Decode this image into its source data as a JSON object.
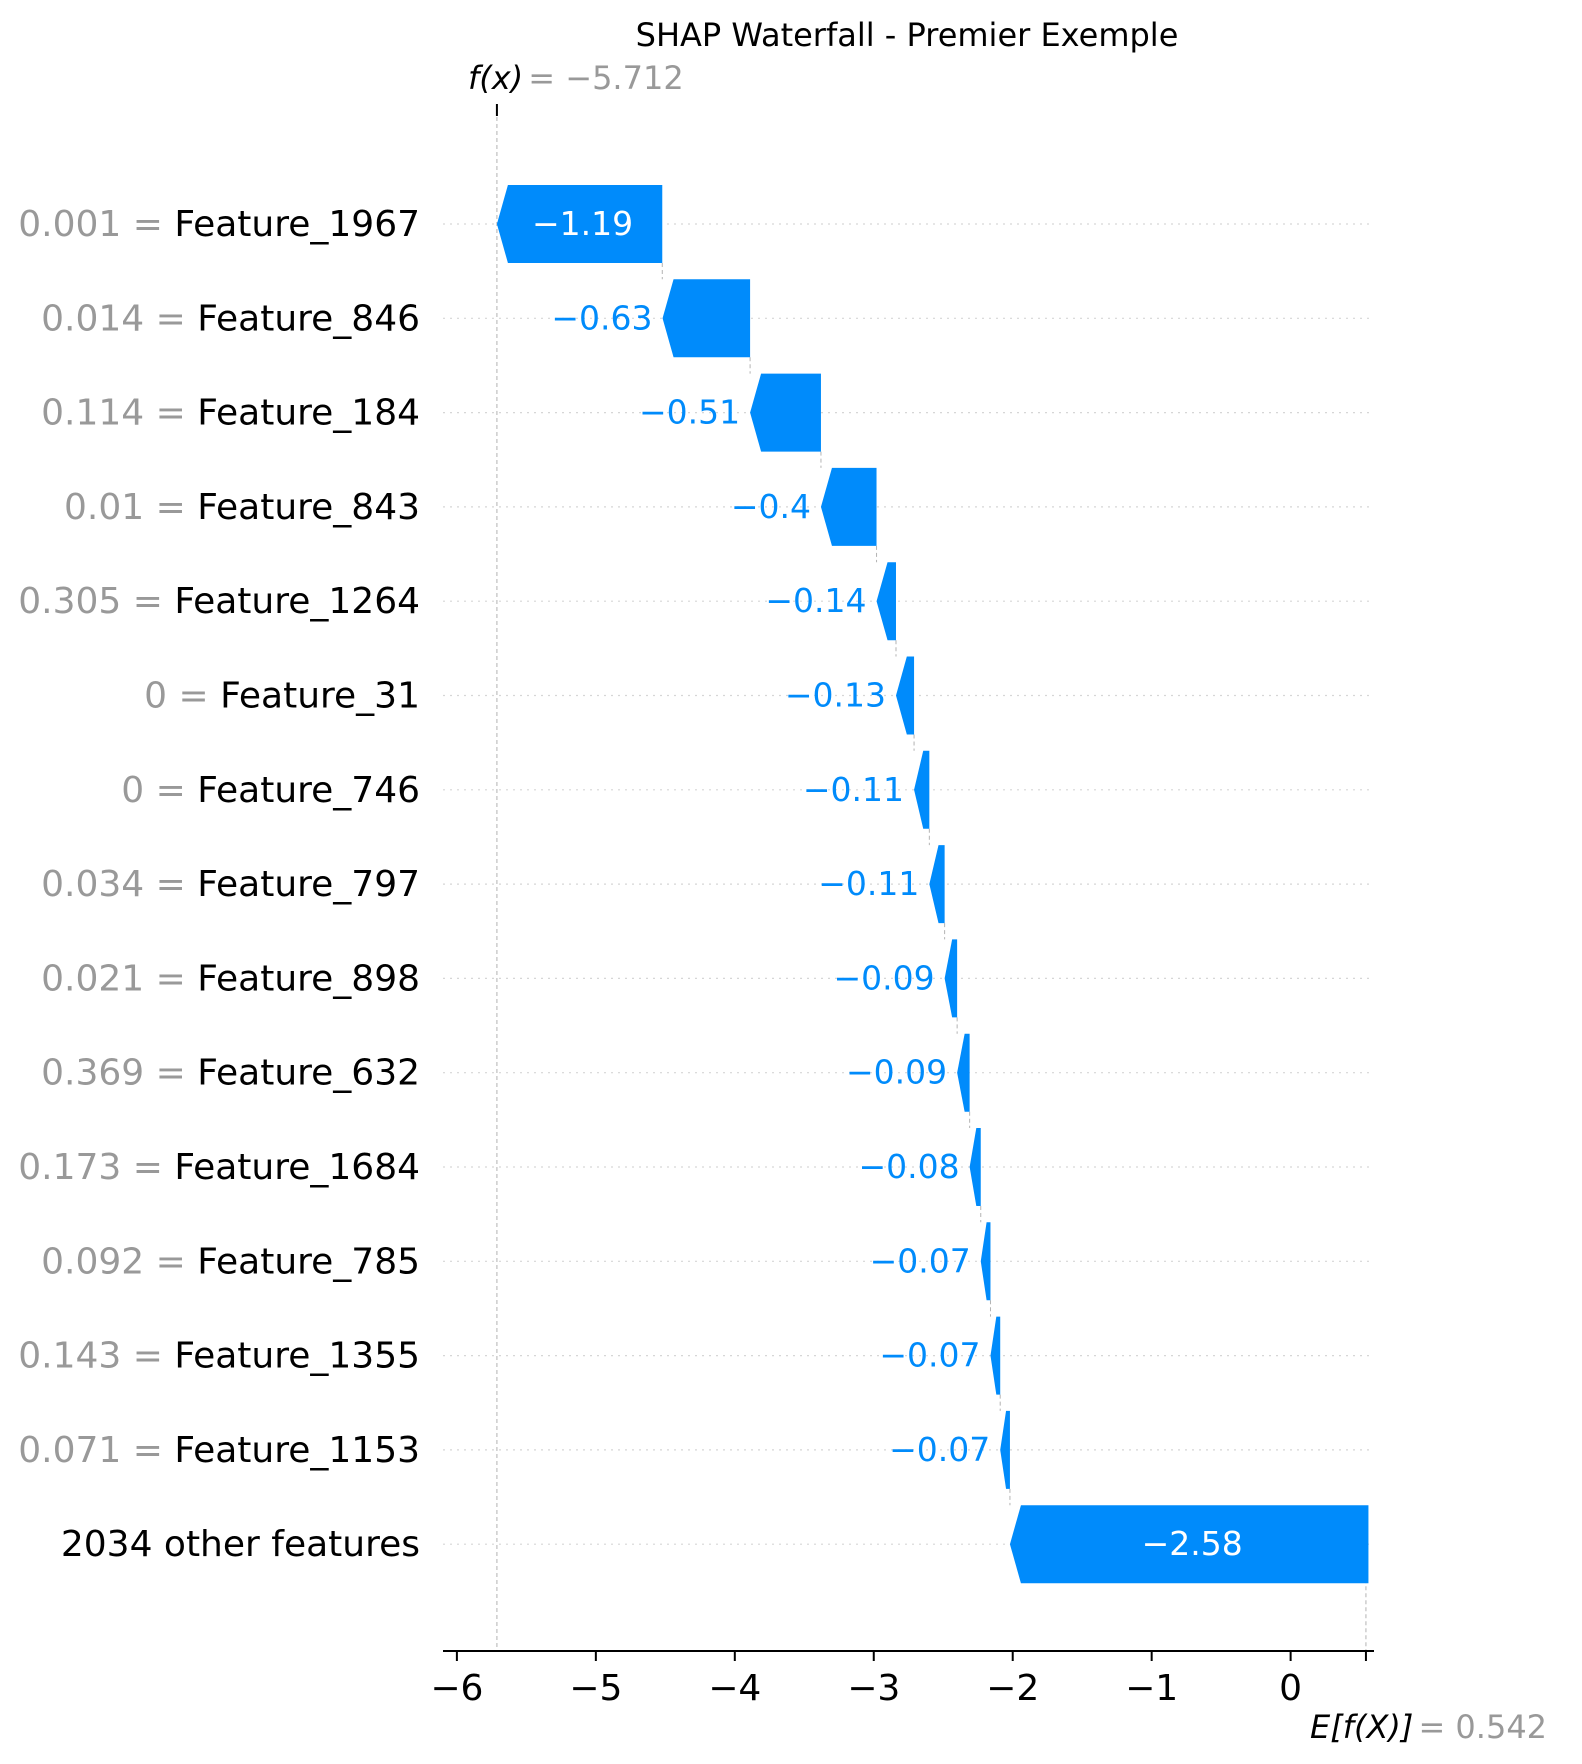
{
  "chart_data": {
    "type": "bar",
    "subtype": "shap-waterfall",
    "title": "SHAP Waterfall - Premier Exemple",
    "fx_label": "f(x)",
    "fx_value": "−5.712",
    "ex_label": "E[f(X)]",
    "ex_value": "0.542",
    "base_value": 0.542,
    "output_value": -5.712,
    "colors": {
      "negative": "#008bfb",
      "positive": "#ff0051"
    },
    "xlim": [
      -6.1,
      0.6
    ],
    "xticks": [
      -6,
      -5,
      -4,
      -3,
      -2,
      -1,
      0
    ],
    "xtick_labels": [
      "−6",
      "−5",
      "−4",
      "−3",
      "−2",
      "−1",
      "0"
    ],
    "rows": [
      {
        "value": "0.001",
        "feature": "Feature_1967",
        "shap": -1.19,
        "label": "−1.19",
        "end": -5.712
      },
      {
        "value": "0.014",
        "feature": "Feature_846",
        "shap": -0.63,
        "label": "−0.63",
        "end": -4.52
      },
      {
        "value": "0.114",
        "feature": "Feature_184",
        "shap": -0.51,
        "label": "−0.51",
        "end": -3.89
      },
      {
        "value": "0.01",
        "feature": "Feature_843",
        "shap": -0.4,
        "label": "−0.4",
        "end": -3.38
      },
      {
        "value": "0.305",
        "feature": "Feature_1264",
        "shap": -0.14,
        "label": "−0.14",
        "end": -2.98
      },
      {
        "value": "0",
        "feature": "Feature_31",
        "shap": -0.13,
        "label": "−0.13",
        "end": -2.84
      },
      {
        "value": "0",
        "feature": "Feature_746",
        "shap": -0.11,
        "label": "−0.11",
        "end": -2.71
      },
      {
        "value": "0.034",
        "feature": "Feature_797",
        "shap": -0.11,
        "label": "−0.11",
        "end": -2.6
      },
      {
        "value": "0.021",
        "feature": "Feature_898",
        "shap": -0.09,
        "label": "−0.09",
        "end": -2.49
      },
      {
        "value": "0.369",
        "feature": "Feature_632",
        "shap": -0.09,
        "label": "−0.09",
        "end": -2.4
      },
      {
        "value": "0.173",
        "feature": "Feature_1684",
        "shap": -0.08,
        "label": "−0.08",
        "end": -2.31
      },
      {
        "value": "0.092",
        "feature": "Feature_785",
        "shap": -0.07,
        "label": "−0.07",
        "end": -2.23
      },
      {
        "value": "0.143",
        "feature": "Feature_1355",
        "shap": -0.07,
        "label": "−0.07",
        "end": -2.16
      },
      {
        "value": "0.071",
        "feature": "Feature_1153",
        "shap": -0.07,
        "label": "−0.07",
        "end": -2.09
      },
      {
        "value": "",
        "feature": "2034 other features",
        "shap": -2.58,
        "label": "−2.58",
        "end": -2.02
      }
    ],
    "grid": "dotted horizontal lines per row",
    "legend": "none"
  }
}
